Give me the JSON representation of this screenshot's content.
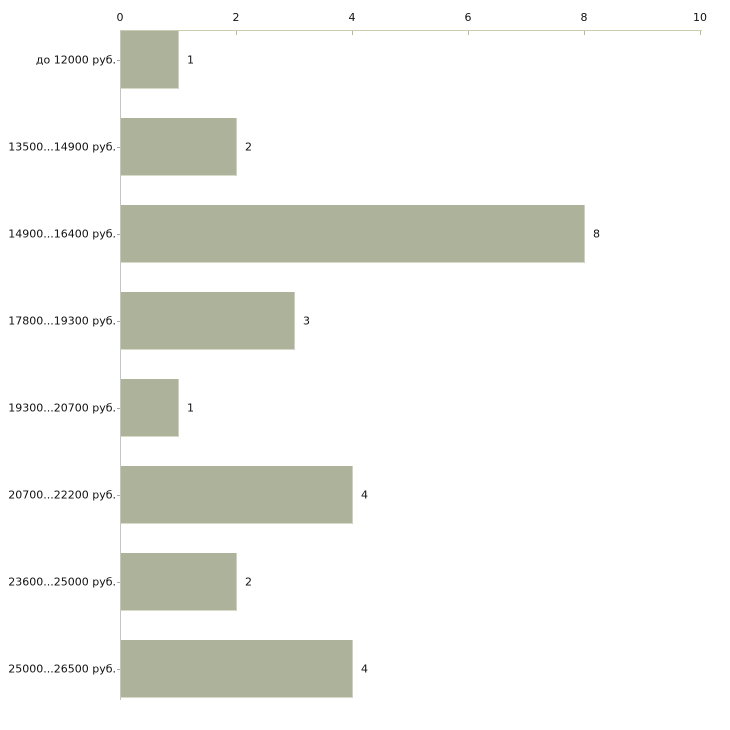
{
  "chart_data": {
    "type": "bar",
    "orientation": "horizontal",
    "title": "",
    "xlabel": "",
    "ylabel": "",
    "categories": [
      "до 12000 руб.",
      "13500...14900 руб.",
      "14900...16400 руб.",
      "17800...19300 руб.",
      "19300...20700 руб.",
      "20700...22200 руб.",
      "23600...25000 руб.",
      "25000...26500 руб."
    ],
    "values": [
      1,
      2,
      8,
      3,
      1,
      4,
      2,
      4
    ],
    "value_labels": [
      "1",
      "2",
      "8",
      "3",
      "1",
      "4",
      "2",
      "4"
    ],
    "xlim": [
      0,
      10
    ],
    "x_ticks": [
      0,
      2,
      4,
      6,
      8,
      10
    ],
    "x_tick_labels": [
      "0",
      "2",
      "4",
      "6",
      "8",
      "10"
    ],
    "grid": false,
    "legend": false,
    "axis_position": "top",
    "colors": {
      "bar_fill": "#adb29a",
      "bar_edge_highlight": "#ced2bd",
      "axis_line": "#cdcdb1",
      "axis_tick": "#b8b894",
      "baseline": "#c5c5c5",
      "text": "#111111",
      "background": "#ffffff"
    }
  }
}
